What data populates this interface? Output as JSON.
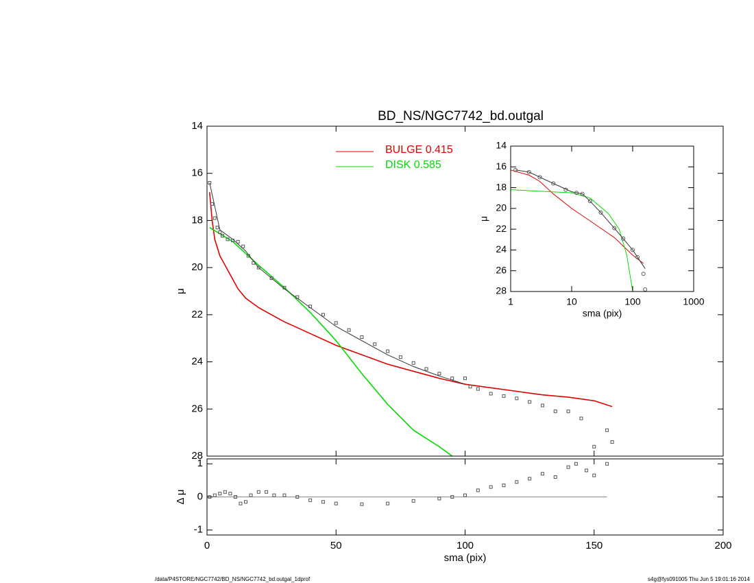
{
  "chart_data": [
    {
      "type": "line",
      "title": "BD_NS/NGC7742_bd.outgal",
      "ylabel": "μ",
      "xlim": [
        0,
        200
      ],
      "xticks": [
        0,
        50,
        100,
        150,
        200
      ],
      "ylim": [
        28,
        14
      ],
      "yticks": [
        14,
        16,
        18,
        20,
        22,
        24,
        26,
        28
      ],
      "legend": "top",
      "points": {
        "color": "#555555",
        "x": [
          1,
          2,
          3,
          4,
          5,
          6,
          8,
          10,
          12,
          14,
          16,
          18,
          20,
          25,
          30,
          35,
          40,
          45,
          50,
          55,
          60,
          65,
          70,
          75,
          80,
          85,
          90,
          95,
          100,
          102,
          105,
          110,
          115,
          120,
          125,
          130,
          135,
          140,
          145,
          150,
          155,
          157
        ],
        "values": [
          16.4,
          17.3,
          17.9,
          18.3,
          18.5,
          18.65,
          18.8,
          18.85,
          18.9,
          19.1,
          19.5,
          19.8,
          20.0,
          20.45,
          20.85,
          21.25,
          21.65,
          22.0,
          22.35,
          22.65,
          22.95,
          23.25,
          23.55,
          23.8,
          24.05,
          24.3,
          24.5,
          24.7,
          24.7,
          25.05,
          25.15,
          25.35,
          25.45,
          25.55,
          25.7,
          25.85,
          26.1,
          26.1,
          26.4,
          27.6,
          26.9,
          27.4
        ]
      },
      "model": {
        "color": "#333333",
        "x": [
          1,
          5,
          10,
          15,
          20,
          30,
          40,
          50,
          60,
          70,
          80,
          90,
          100
        ],
        "values": [
          16.4,
          18.4,
          18.8,
          19.3,
          20.0,
          20.9,
          21.7,
          22.5,
          23.1,
          23.7,
          24.2,
          24.6,
          24.95
        ]
      },
      "series": [
        {
          "name": "BULGE  0.415",
          "color": "#e00000",
          "x": [
            1,
            2,
            3,
            5,
            8,
            10,
            12,
            15,
            20,
            25,
            30,
            40,
            50,
            60,
            70,
            80,
            90,
            100,
            110,
            120,
            130,
            140,
            150,
            157
          ],
          "values": [
            16.8,
            18.0,
            18.8,
            19.5,
            20.1,
            20.5,
            20.9,
            21.3,
            21.7,
            22.0,
            22.3,
            22.8,
            23.3,
            23.7,
            24.1,
            24.4,
            24.7,
            24.95,
            25.1,
            25.25,
            25.4,
            25.5,
            25.65,
            25.9
          ]
        },
        {
          "name": "DISK  0.585",
          "color": "#00dd00",
          "x": [
            1,
            10,
            20,
            30,
            40,
            50,
            60,
            70,
            80,
            90,
            95
          ],
          "values": [
            18.3,
            18.9,
            19.9,
            20.85,
            21.9,
            23.1,
            24.5,
            25.8,
            26.9,
            27.6,
            28.0
          ]
        }
      ]
    },
    {
      "type": "scatter",
      "xlabel": "sma (pix)",
      "ylabel": "Δ μ",
      "xlim": [
        0,
        200
      ],
      "xticks": [
        0,
        50,
        100,
        150,
        200
      ],
      "ylim": [
        -1.15,
        1.15
      ],
      "yticks": [
        -1,
        0,
        1
      ],
      "color": "#555555",
      "x": [
        1,
        3,
        5,
        7,
        9,
        11,
        13,
        15,
        17,
        20,
        23,
        26,
        30,
        35,
        40,
        45,
        50,
        60,
        70,
        80,
        90,
        95,
        100,
        105,
        110,
        115,
        120,
        125,
        130,
        135,
        140,
        143,
        147,
        150,
        155
      ],
      "values": [
        0,
        0.05,
        0.1,
        0.15,
        0.1,
        0,
        -0.2,
        -0.15,
        0.05,
        0.15,
        0.15,
        0.05,
        0.05,
        0,
        -0.1,
        -0.15,
        -0.2,
        -0.22,
        -0.2,
        -0.12,
        -0.05,
        0,
        0.05,
        0.2,
        0.3,
        0.35,
        0.45,
        0.55,
        0.7,
        0.6,
        0.9,
        1.0,
        0.8,
        0.65,
        1.0
      ]
    },
    {
      "type": "line",
      "xlabel": "sma (pix)",
      "ylabel": "μ",
      "xlog": true,
      "xlim": [
        1,
        1000
      ],
      "xticks": [
        1,
        10,
        100,
        1000
      ],
      "ylim": [
        28,
        14
      ],
      "yticks": [
        14,
        16,
        18,
        20,
        22,
        24,
        26,
        28
      ],
      "points": {
        "color": "#555555",
        "x": [
          1.2,
          2,
          3,
          5,
          8,
          12,
          15,
          20,
          30,
          50,
          70,
          100,
          120,
          150,
          160
        ],
        "values": [
          16.3,
          16.5,
          17,
          17.6,
          18.2,
          18.5,
          18.6,
          19.3,
          20.4,
          21.9,
          22.9,
          24.0,
          24.7,
          26.3,
          27.8
        ]
      },
      "model": {
        "color": "#333333",
        "x": [
          1.2,
          2,
          5,
          10,
          15,
          20,
          30,
          50,
          100,
          160
        ],
        "values": [
          16.3,
          16.5,
          17.6,
          18.4,
          18.6,
          19.3,
          20.4,
          21.9,
          24.0,
          25.8
        ]
      },
      "series": [
        {
          "name": "BULGE",
          "color": "#e00000",
          "x": [
            1,
            2,
            3,
            5,
            10,
            20,
            50,
            100,
            150
          ],
          "values": [
            16.3,
            16.8,
            17.4,
            18.6,
            20,
            21.2,
            22.8,
            24.5,
            25.3
          ]
        },
        {
          "name": "DISK",
          "color": "#00dd00",
          "x": [
            1,
            10,
            20,
            40,
            60,
            80,
            100
          ],
          "values": [
            18.2,
            18.5,
            19.0,
            20.5,
            22,
            24.5,
            28
          ]
        }
      ]
    }
  ],
  "footer": {
    "left": "/data/P4STORE/NGC7742/BD_NS/NGC7742_bd.outgal_1dprof",
    "right": "s4g@fys091005  Thu Jun  5 19:01:16 2014"
  }
}
